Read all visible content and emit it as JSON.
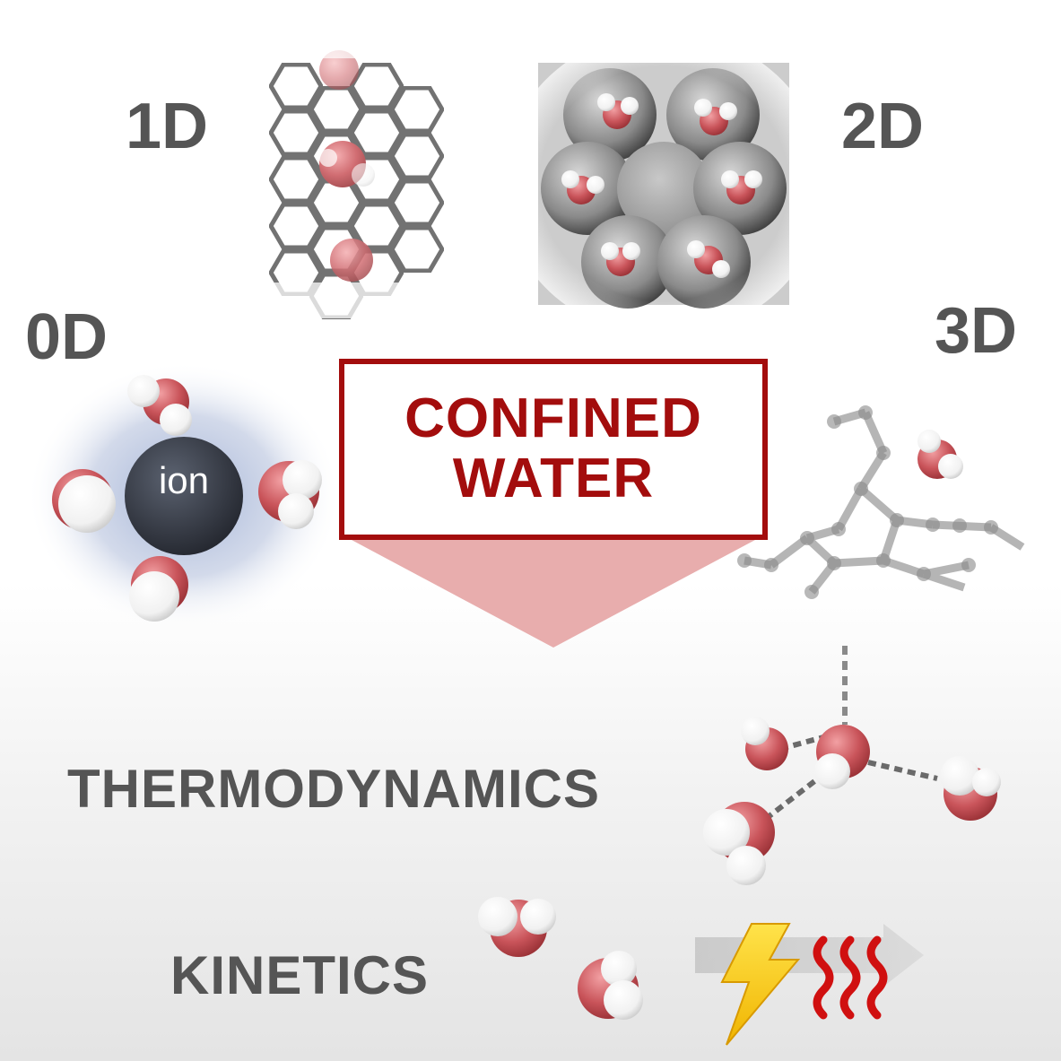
{
  "dimensions": {
    "one_d": "1D",
    "two_d": "2D",
    "zero_d": "0D",
    "three_d": "3D"
  },
  "center_box": {
    "line1": "CONFINED",
    "line2": "WATER",
    "accent_color": "#a30d0d",
    "arrow_color": "#e8adad"
  },
  "ion": {
    "label": "ion",
    "color": "#333740",
    "halo_color": "#8fa3cf"
  },
  "sections": {
    "thermodynamics": "THERMODYNAMICS",
    "kinetics": "KINETICS"
  },
  "colors": {
    "text": "#555555",
    "oxygen": "#c9545a",
    "hydrogen": "#ffffff",
    "heat": "#d01010",
    "lightning": "#f7d21a"
  },
  "icons": [
    "lightning-icon",
    "heat-waves-icon"
  ]
}
